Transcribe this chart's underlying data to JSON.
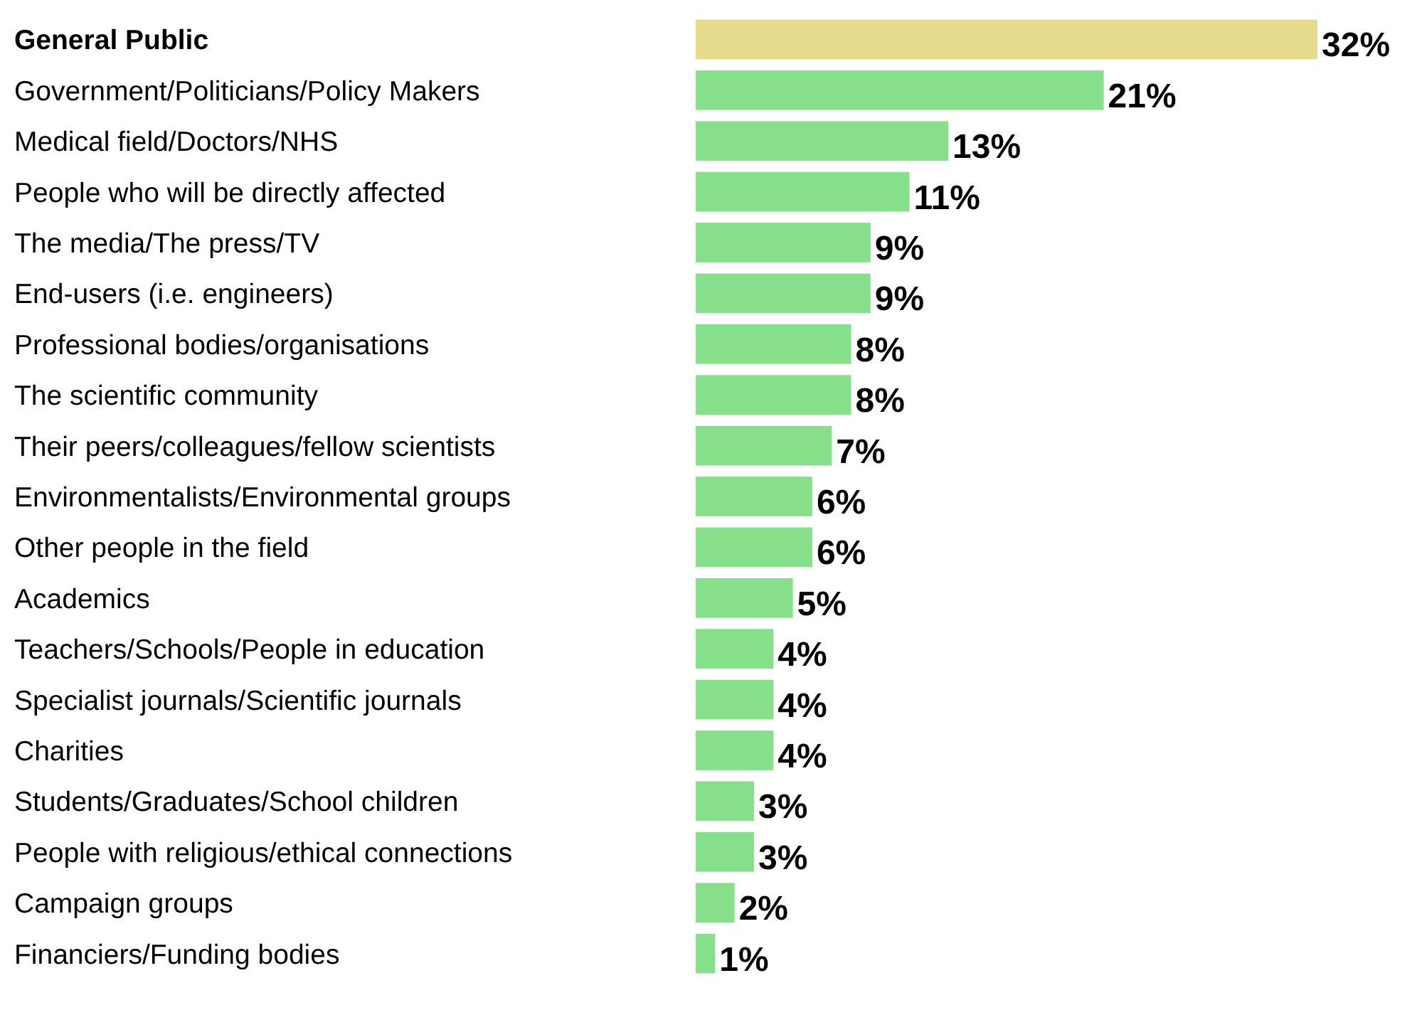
{
  "chart_data": {
    "type": "bar",
    "orientation": "horizontal",
    "categories": [
      "General Public",
      "Government/Politicians/Policy Makers",
      "Medical field/Doctors/NHS",
      "People who will be directly affected",
      "The media/The press/TV",
      "End-users (i.e. engineers)",
      "Professional bodies/organisations",
      "The scientific community",
      "Their peers/colleagues/fellow scientists",
      "Environmentalists/Environmental groups",
      "Other people in the field",
      "Academics",
      "Teachers/Schools/People in education",
      "Specialist journals/Scientific journals",
      "Charities",
      "Students/Graduates/School children",
      "People with religious/ethical connections",
      "Campaign groups",
      "Financiers/Funding bodies"
    ],
    "values": [
      32,
      21,
      13,
      11,
      9,
      9,
      8,
      8,
      7,
      6,
      6,
      5,
      4,
      4,
      4,
      3,
      3,
      2,
      1
    ],
    "value_labels": [
      "32%",
      "21%",
      "13%",
      "11%",
      "9%",
      "9%",
      "8%",
      "8%",
      "7%",
      "6%",
      "6%",
      "5%",
      "4%",
      "4%",
      "4%",
      "3%",
      "3%",
      "2%",
      "1%"
    ],
    "colors": [
      "#e4dc8c",
      "#86e08a",
      "#86e08a",
      "#86e08a",
      "#86e08a",
      "#86e08a",
      "#86e08a",
      "#86e08a",
      "#86e08a",
      "#86e08a",
      "#86e08a",
      "#86e08a",
      "#86e08a",
      "#86e08a",
      "#86e08a",
      "#86e08a",
      "#86e08a",
      "#86e08a",
      "#86e08a"
    ]
  }
}
